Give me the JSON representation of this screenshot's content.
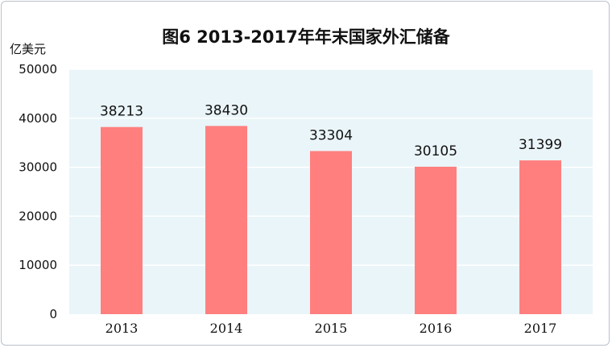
{
  "chart_data": {
    "type": "bar",
    "title": "图6 2013-2017年年末国家外汇储备",
    "ylabel": "亿美元",
    "xlabel": "",
    "categories": [
      "2013",
      "2014",
      "2015",
      "2016",
      "2017"
    ],
    "values": [
      38213,
      38430,
      33304,
      30105,
      31399
    ],
    "data_labels": [
      "38213",
      "38430",
      "33304",
      "30105",
      "31399"
    ],
    "ylim": [
      0,
      50000
    ],
    "yticks": [
      0,
      10000,
      20000,
      30000,
      40000,
      50000
    ],
    "ytick_labels": [
      "0",
      "10000",
      "20000",
      "30000",
      "40000",
      "50000"
    ],
    "grid": true,
    "legend": "none",
    "colors": {
      "bar": "#ff7f7f",
      "plot_background": "#eaf5f9",
      "grid": "#ffffff"
    }
  }
}
